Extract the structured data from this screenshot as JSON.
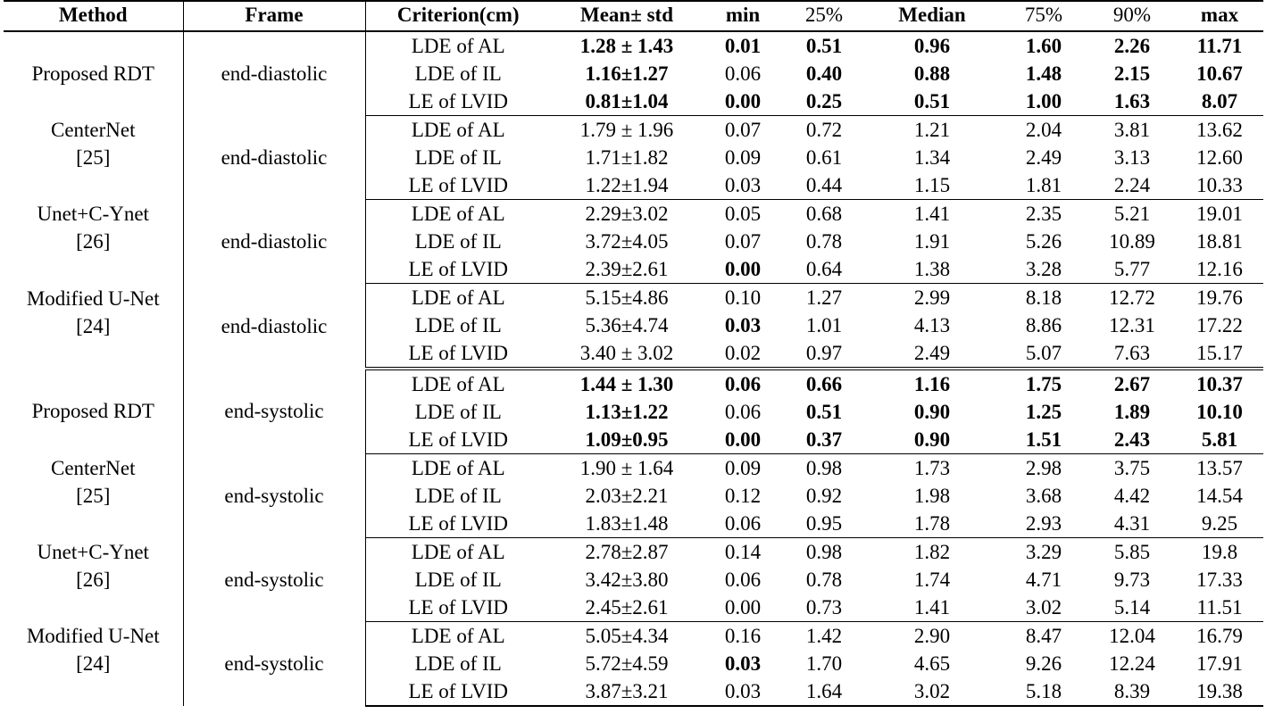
{
  "table": {
    "headers": {
      "method": "Method",
      "frame": "Frame",
      "criterion": "Criterion(cm)",
      "mean_std": "Mean± std",
      "min": "min",
      "p25": "25%",
      "median": "Median",
      "p75": "75%",
      "p90": "90%",
      "max": "max"
    },
    "groups": [
      {
        "method": "Proposed RDT",
        "ref": "",
        "frame": "end-diastolic",
        "rows": [
          {
            "criterion": "LDE of AL",
            "mean_std": "1.28 ± 1.43",
            "min": "0.01",
            "p25": "0.51",
            "median": "0.96",
            "p75": "1.60",
            "p90": "2.26",
            "max": "11.71"
          },
          {
            "criterion": "LDE of IL",
            "mean_std": "1.16±1.27",
            "min": "0.06",
            "p25": "0.40",
            "median": "0.88",
            "p75": "1.48",
            "p90": "2.15",
            "max": "10.67"
          },
          {
            "criterion": "LE of LVID",
            "mean_std": "0.81±1.04",
            "min": "0.00",
            "p25": "0.25",
            "median": "0.51",
            "p75": "1.00",
            "p90": "1.63",
            "max": "8.07"
          }
        ]
      },
      {
        "method": "CenterNet",
        "ref": "[25]",
        "frame": "end-diastolic",
        "rows": [
          {
            "criterion": "LDE of AL",
            "mean_std": "1.79 ± 1.96",
            "min": "0.07",
            "p25": "0.72",
            "median": "1.21",
            "p75": "2.04",
            "p90": "3.81",
            "max": "13.62"
          },
          {
            "criterion": "LDE of IL",
            "mean_std": "1.71±1.82",
            "min": "0.09",
            "p25": "0.61",
            "median": "1.34",
            "p75": "2.49",
            "p90": "3.13",
            "max": "12.60"
          },
          {
            "criterion": "LE of LVID",
            "mean_std": "1.22±1.94",
            "min": "0.03",
            "p25": "0.44",
            "median": "1.15",
            "p75": "1.81",
            "p90": "2.24",
            "max": "10.33"
          }
        ]
      },
      {
        "method": "Unet+C-Ynet",
        "ref": "[26]",
        "frame": "end-diastolic",
        "rows": [
          {
            "criterion": "LDE of AL",
            "mean_std": "2.29±3.02",
            "min": "0.05",
            "p25": "0.68",
            "median": "1.41",
            "p75": "2.35",
            "p90": "5.21",
            "max": "19.01"
          },
          {
            "criterion": "LDE of IL",
            "mean_std": "3.72±4.05",
            "min": "0.07",
            "p25": "0.78",
            "median": "1.91",
            "p75": "5.26",
            "p90": "10.89",
            "max": "18.81"
          },
          {
            "criterion": "LE of LVID",
            "mean_std": "2.39±2.61",
            "min": "0.00",
            "p25": "0.64",
            "median": "1.38",
            "p75": "3.28",
            "p90": "5.77",
            "max": "12.16"
          }
        ]
      },
      {
        "method": "Modified U-Net",
        "ref": "[24]",
        "frame": "end-diastolic",
        "rows": [
          {
            "criterion": "LDE of AL",
            "mean_std": "5.15±4.86",
            "min": "0.10",
            "p25": "1.27",
            "median": "2.99",
            "p75": "8.18",
            "p90": "12.72",
            "max": "19.76"
          },
          {
            "criterion": "LDE of IL",
            "mean_std": "5.36±4.74",
            "min": "0.03",
            "p25": "1.01",
            "median": "4.13",
            "p75": "8.86",
            "p90": "12.31",
            "max": "17.22"
          },
          {
            "criterion": "LE of LVID",
            "mean_std": "3.40 ± 3.02",
            "min": "0.02",
            "p25": "0.97",
            "median": "2.49",
            "p75": "5.07",
            "p90": "7.63",
            "max": "15.17"
          }
        ]
      },
      {
        "method": "Proposed RDT",
        "ref": "",
        "frame": "end-systolic",
        "rows": [
          {
            "criterion": "LDE of AL",
            "mean_std": "1.44 ± 1.30",
            "min": "0.06",
            "p25": "0.66",
            "median": "1.16",
            "p75": "1.75",
            "p90": "2.67",
            "max": "10.37"
          },
          {
            "criterion": "LDE of IL",
            "mean_std": "1.13±1.22",
            "min": "0.06",
            "p25": "0.51",
            "median": "0.90",
            "p75": "1.25",
            "p90": "1.89",
            "max": "10.10"
          },
          {
            "criterion": "LE of LVID",
            "mean_std": "1.09±0.95",
            "min": "0.00",
            "p25": "0.37",
            "median": "0.90",
            "p75": "1.51",
            "p90": "2.43",
            "max": "5.81"
          }
        ]
      },
      {
        "method": "CenterNet",
        "ref": "[25]",
        "frame": "end-systolic",
        "rows": [
          {
            "criterion": "LDE of AL",
            "mean_std": "1.90 ± 1.64",
            "min": "0.09",
            "p25": "0.98",
            "median": "1.73",
            "p75": "2.98",
            "p90": "3.75",
            "max": "13.57"
          },
          {
            "criterion": "LDE of IL",
            "mean_std": "2.03±2.21",
            "min": "0.12",
            "p25": "0.92",
            "median": "1.98",
            "p75": "3.68",
            "p90": "4.42",
            "max": "14.54"
          },
          {
            "criterion": "LE of LVID",
            "mean_std": "1.83±1.48",
            "min": "0.06",
            "p25": "0.95",
            "median": "1.78",
            "p75": "2.93",
            "p90": "4.31",
            "max": "9.25"
          }
        ]
      },
      {
        "method": "Unet+C-Ynet",
        "ref": "[26]",
        "frame": "end-systolic",
        "rows": [
          {
            "criterion": "LDE of AL",
            "mean_std": "2.78±2.87",
            "min": "0.14",
            "p25": "0.98",
            "median": "1.82",
            "p75": "3.29",
            "p90": "5.85",
            "max": "19.8"
          },
          {
            "criterion": "LDE of IL",
            "mean_std": "3.42±3.80",
            "min": "0.06",
            "p25": "0.78",
            "median": "1.74",
            "p75": "4.71",
            "p90": "9.73",
            "max": "17.33"
          },
          {
            "criterion": "LE of LVID",
            "mean_std": "2.45±2.61",
            "min": "0.00",
            "p25": "0.73",
            "median": "1.41",
            "p75": "3.02",
            "p90": "5.14",
            "max": "11.51"
          }
        ]
      },
      {
        "method": "Modified U-Net",
        "ref": "[24]",
        "frame": "end-systolic",
        "rows": [
          {
            "criterion": "LDE of AL",
            "mean_std": "5.05±4.34",
            "min": "0.16",
            "p25": "1.42",
            "median": "2.90",
            "p75": "8.47",
            "p90": "12.04",
            "max": "16.79"
          },
          {
            "criterion": "LDE of IL",
            "mean_std": "5.72±4.59",
            "min": "0.03",
            "p25": "1.70",
            "median": "4.65",
            "p75": "9.26",
            "p90": "12.24",
            "max": "17.91"
          },
          {
            "criterion": "LE of LVID",
            "mean_std": "3.87±3.21",
            "min": "0.03",
            "p25": "1.64",
            "median": "3.02",
            "p75": "5.18",
            "p90": "8.39",
            "max": "19.38"
          }
        ]
      }
    ]
  }
}
